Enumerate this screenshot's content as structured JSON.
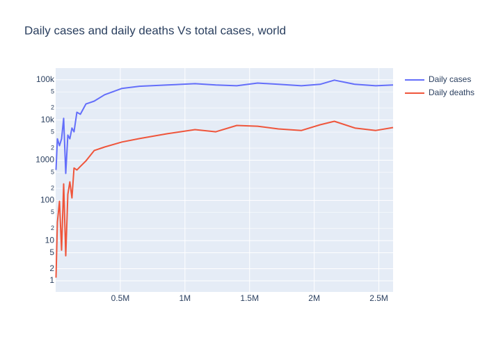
{
  "chart_data": {
    "type": "line",
    "title": "Daily cases and daily deaths Vs total cases, world",
    "x": [
      2700,
      13400,
      29600,
      45700,
      61800,
      78000,
      94100,
      110000,
      126000,
      142000,
      164000,
      191000,
      234000,
      298000,
      379000,
      513000,
      648000,
      863000,
      1078000,
      1239000,
      1401000,
      1562000,
      1723000,
      1901000,
      2046000,
      2156000,
      2315000,
      2476000,
      2610000
    ],
    "series": [
      {
        "name": "Daily cases",
        "color": "#636efa",
        "values": [
          570,
          3400,
          2300,
          3400,
          11000,
          470,
          4200,
          3400,
          6300,
          5100,
          15600,
          13900,
          25000,
          29500,
          42500,
          61000,
          69000,
          74000,
          80000,
          74000,
          71000,
          83000,
          77000,
          71000,
          77000,
          98000,
          77000,
          71000,
          74000
        ]
      },
      {
        "name": "Daily deaths",
        "color": "#ef553b",
        "values": [
          1.2,
          29,
          95,
          5.8,
          257,
          4.2,
          141,
          290,
          115,
          640,
          570,
          700,
          960,
          1740,
          2130,
          2830,
          3450,
          4550,
          5750,
          5100,
          7300,
          7000,
          6000,
          5500,
          7600,
          9300,
          6300,
          5500,
          6500
        ]
      }
    ],
    "xlim": [
      0,
      2610000
    ],
    "xticks": [
      {
        "value": 500000,
        "label": "0.5M"
      },
      {
        "value": 1000000,
        "label": "1M"
      },
      {
        "value": 1500000,
        "label": "1.5M"
      },
      {
        "value": 2000000,
        "label": "2M"
      },
      {
        "value": 2500000,
        "label": "2.5M"
      }
    ],
    "ylim": [
      0.53,
      195000
    ],
    "y_log": true,
    "yticks": [
      1,
      2,
      5,
      10,
      {
        "value": 20,
        "label": "2"
      },
      {
        "value": 50,
        "label": "5"
      },
      100,
      {
        "value": 200,
        "label": "2"
      },
      {
        "value": 500,
        "label": "5"
      },
      1000,
      {
        "value": 2000,
        "label": "2"
      },
      {
        "value": 5000,
        "label": "5"
      },
      {
        "value": 10000,
        "label": "10k"
      },
      {
        "value": 20000,
        "label": "2"
      },
      {
        "value": 50000,
        "label": "5"
      },
      {
        "value": 100000,
        "label": "100k"
      }
    ],
    "grid": true,
    "legend": "right"
  }
}
